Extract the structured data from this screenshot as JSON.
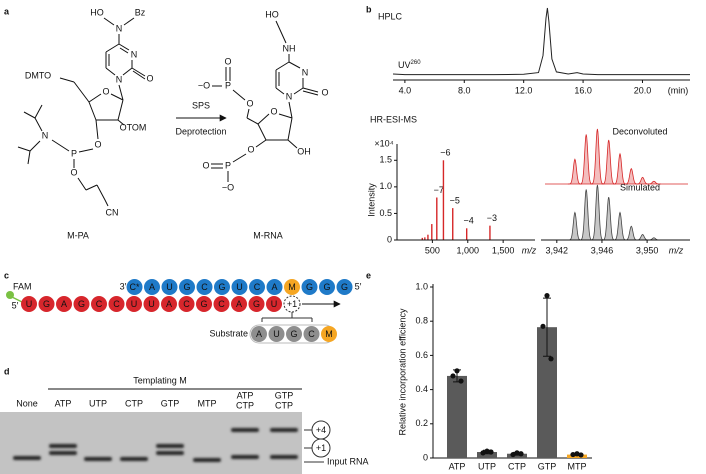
{
  "figure": {
    "panel_labels": [
      "a",
      "b",
      "c",
      "d",
      "e"
    ],
    "scheme": {
      "reactant_atoms": [
        "HO",
        "N",
        "Bz",
        "N",
        "O",
        "N",
        "DMTO",
        "O",
        "OTOM",
        "O",
        "P",
        "N",
        "O",
        "CN"
      ],
      "reactant_name": "M-PA",
      "arrow_top": "SPS",
      "arrow_bottom": "Deprotection",
      "product_atoms": [
        "HO",
        "NH",
        "N",
        "O",
        "N",
        "O",
        "−O",
        "P",
        "O",
        "O",
        "O",
        "P",
        "O",
        "−O",
        "OH"
      ],
      "product_name": "M-RNA"
    },
    "duplex": {
      "template_3prime": "3′",
      "template": [
        "C*",
        "A",
        "U",
        "G",
        "C",
        "G",
        "U",
        "C",
        "A",
        "M",
        "G",
        "G",
        "G"
      ],
      "template_5prime": "5′",
      "dye": "FAM",
      "primer_5prime": "5′",
      "primer": [
        "U",
        "G",
        "A",
        "G",
        "C",
        "C",
        "U",
        "U",
        "A",
        "C",
        "G",
        "C",
        "A",
        "G",
        "U"
      ],
      "next": "+1",
      "substrate_label": "Substrate",
      "substrate": [
        "A",
        "U",
        "G",
        "C",
        "M"
      ]
    },
    "gel": {
      "title": "Templating M",
      "lanes": [
        "None",
        "ATP",
        "UTP",
        "CTP",
        "GTP",
        "MTP",
        [
          "ATP",
          "CTP"
        ],
        [
          "GTP",
          "CTP"
        ]
      ],
      "bands": [
        "+4",
        "+1",
        "Input RNA"
      ]
    }
  },
  "chart_data": [
    {
      "type": "line",
      "title": "HPLC",
      "trace_label": "UV",
      "trace_label_sup": "260",
      "x": [
        3.2,
        4,
        6,
        8,
        10,
        12,
        13,
        13.3,
        13.5,
        13.6,
        13.7,
        13.9,
        14.2,
        15,
        15.6,
        16,
        17,
        20,
        23.2
      ],
      "values": [
        3,
        2,
        2,
        2,
        2,
        2.5,
        5,
        30,
        85,
        100,
        80,
        25,
        6,
        3,
        5,
        3,
        2,
        2,
        2
      ],
      "color": "#222222",
      "xlim": [
        3.2,
        23.2
      ],
      "ylim": [
        0,
        100
      ],
      "xticks": [
        {
          "value": 4,
          "label": "4.0"
        },
        {
          "value": 8,
          "label": "8.0"
        },
        {
          "value": 12,
          "label": "12.0"
        },
        {
          "value": 16,
          "label": "16.0"
        },
        {
          "value": 20,
          "label": "20.0"
        }
      ],
      "x_unit": "(min)"
    },
    {
      "type": "stem",
      "title": "HR-ESI-MS",
      "ylabel": "Intensity",
      "y_scale_label": "×10⁴",
      "x": [
        357.4,
        393.2,
        437.1,
        491.8,
        562.3,
        656.2,
        787.6,
        984.8,
        1313.3
      ],
      "values": [
        0.04,
        0.05,
        0.1,
        0.3,
        0.8,
        1.5,
        0.6,
        0.22,
        0.27
      ],
      "labels": [
        null,
        null,
        null,
        null,
        "−7",
        "−6",
        "−5",
        "−4",
        "−3"
      ],
      "color": "#d62728",
      "xlim": [
        0,
        1950
      ],
      "ylim": [
        0,
        1.75
      ],
      "xticks": [
        500,
        {
          "value": 1000,
          "label": "1,000"
        },
        {
          "value": 1500,
          "label": "1,500"
        }
      ],
      "yticks": [
        0,
        0.5,
        {
          "value": 1,
          "label": "1.0"
        },
        1.5
      ],
      "x_unit": "m/z"
    },
    {
      "type": "isotope",
      "x": [
        3943.6,
        3944.6,
        3945.6,
        3946.6,
        3947.6,
        3948.6,
        3949.6,
        3950.6
      ],
      "series": [
        {
          "name": "Deconvoluted",
          "color": "#d62728",
          "values": [
            45,
            90,
            100,
            80,
            55,
            28,
            12,
            5
          ]
        },
        {
          "name": "Simulated",
          "color": "#444444",
          "values": [
            50,
            92,
            100,
            78,
            50,
            25,
            10,
            4
          ]
        }
      ],
      "xlim": [
        3940.6,
        3953.8
      ],
      "ylim": [
        0,
        100
      ],
      "xticks": [
        {
          "value": 3942,
          "label": "3,942"
        },
        {
          "value": 3946,
          "label": "3,946"
        },
        {
          "value": 3950,
          "label": "3,950"
        }
      ],
      "x_unit": "m/z"
    },
    {
      "type": "bar",
      "ylabel": "Relative incorporation efficiency",
      "categories": [
        "ATP",
        "UTP",
        "CTP",
        "GTP",
        "MTP"
      ],
      "values": [
        0.48,
        0.035,
        0.025,
        0.765,
        0.02
      ],
      "errors": [
        0.035,
        0.01,
        0.008,
        0.17,
        0.006
      ],
      "points": [
        [
          0.51,
          0.48,
          0.45
        ],
        [
          0.04,
          0.03,
          0.035
        ],
        [
          0.03,
          0.02,
          0.025
        ],
        [
          0.95,
          0.77,
          0.58
        ],
        [
          0.025,
          0.02,
          0.018
        ]
      ],
      "colors": [
        "#5a5a5a",
        "#5a5a5a",
        "#5a5a5a",
        "#5a5a5a",
        "#f5a623"
      ],
      "ylim": [
        0,
        1
      ],
      "yticks": [
        0,
        0.2,
        0.4,
        0.6,
        0.8,
        {
          "value": 1,
          "label": "1.0"
        }
      ]
    }
  ]
}
